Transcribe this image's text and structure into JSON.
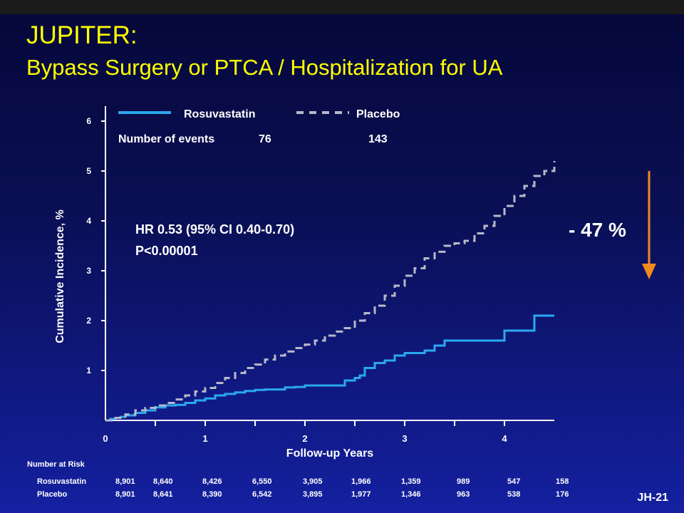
{
  "title": "JUPITER:",
  "subtitle": "Bypass Surgery or PTCA / Hospitalization for UA",
  "slide_id": "JH-21",
  "reduction_label": "- 47 %",
  "colors": {
    "title": "#ffff00",
    "rosuvastatin": "#2aa8ef",
    "placebo": "#b8b8c8",
    "arrow": "#f08a1c",
    "axis": "#ffffff"
  },
  "events": {
    "label": "Number of events",
    "rosuvastatin": "76",
    "placebo": "143"
  },
  "hr_text": [
    "HR 0.53 (95% CI 0.40-0.70)",
    "P<0.00001"
  ],
  "at_risk": {
    "title": "Number at Risk",
    "rows": [
      {
        "name": "Rosuvastatin",
        "values": [
          "8,901",
          "8,640",
          "8,426",
          "6,550",
          "3,905",
          "1,966",
          "1,359",
          "989",
          "547",
          "158"
        ]
      },
      {
        "name": "Placebo",
        "values": [
          "8,901",
          "8,641",
          "8,390",
          "6,542",
          "3,895",
          "1,977",
          "1,346",
          "963",
          "538",
          "176"
        ]
      }
    ]
  },
  "chart_data": {
    "type": "line",
    "title": "",
    "xlabel": "Follow-up Years",
    "ylabel": "Cumulative Incidence, %",
    "xlim": [
      0,
      4.5
    ],
    "ylim": [
      0,
      6.3
    ],
    "xticks": [
      "0",
      "1",
      "2",
      "3",
      "4"
    ],
    "yticks": [
      "1",
      "2",
      "3",
      "4",
      "5",
      "6"
    ],
    "legend_position": "top",
    "grid": false,
    "series": [
      {
        "name": "Rosuvastatin",
        "style": "solid",
        "x": [
          0,
          0.05,
          0.1,
          0.15,
          0.2,
          0.3,
          0.4,
          0.5,
          0.6,
          0.7,
          0.8,
          0.9,
          1.0,
          1.1,
          1.2,
          1.3,
          1.4,
          1.5,
          1.6,
          1.7,
          1.8,
          1.9,
          2.0,
          2.1,
          2.2,
          2.3,
          2.4,
          2.5,
          2.55,
          2.6,
          2.7,
          2.8,
          2.9,
          3.0,
          3.1,
          3.2,
          3.3,
          3.4,
          3.5,
          3.6,
          3.8,
          4.0,
          4.15,
          4.3,
          4.5
        ],
        "y": [
          0,
          0.03,
          0.05,
          0.07,
          0.1,
          0.15,
          0.2,
          0.26,
          0.3,
          0.31,
          0.35,
          0.4,
          0.44,
          0.5,
          0.53,
          0.56,
          0.59,
          0.61,
          0.62,
          0.62,
          0.66,
          0.67,
          0.7,
          0.7,
          0.7,
          0.7,
          0.8,
          0.85,
          0.9,
          1.05,
          1.15,
          1.2,
          1.3,
          1.35,
          1.35,
          1.4,
          1.5,
          1.6,
          1.6,
          1.6,
          1.6,
          1.8,
          1.8,
          2.1,
          2.1
        ]
      },
      {
        "name": "Placebo",
        "style": "dashed",
        "x": [
          0,
          0.1,
          0.2,
          0.3,
          0.4,
          0.5,
          0.6,
          0.7,
          0.8,
          0.9,
          1.0,
          1.1,
          1.2,
          1.3,
          1.4,
          1.5,
          1.6,
          1.7,
          1.8,
          1.9,
          2.0,
          2.1,
          2.2,
          2.3,
          2.4,
          2.5,
          2.6,
          2.7,
          2.8,
          2.9,
          3.0,
          3.1,
          3.2,
          3.3,
          3.4,
          3.5,
          3.6,
          3.7,
          3.8,
          3.9,
          4.0,
          4.1,
          4.2,
          4.3,
          4.4,
          4.5
        ],
        "y": [
          0,
          0.05,
          0.12,
          0.2,
          0.25,
          0.3,
          0.35,
          0.42,
          0.5,
          0.58,
          0.65,
          0.75,
          0.85,
          0.95,
          1.05,
          1.12,
          1.22,
          1.3,
          1.38,
          1.45,
          1.52,
          1.6,
          1.7,
          1.78,
          1.85,
          2.0,
          2.15,
          2.3,
          2.5,
          2.7,
          2.9,
          3.05,
          3.25,
          3.38,
          3.5,
          3.55,
          3.6,
          3.75,
          3.9,
          4.1,
          4.3,
          4.5,
          4.7,
          4.9,
          5.0,
          5.2
        ]
      }
    ]
  }
}
